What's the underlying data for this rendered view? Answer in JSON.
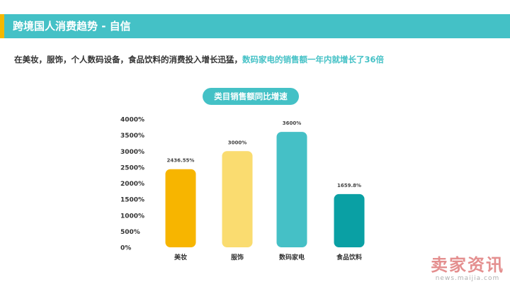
{
  "header": {
    "title": "跨境国人消费趋势 - 自信"
  },
  "subtitle": {
    "plain": "在美妆，服饰，个人数码设备，食品饮料的消费投入增长迅猛，",
    "highlight": "数码家电的销售额一年内就增长了36倍"
  },
  "colors": {
    "accent": "#44c1c6",
    "tab": "#f5b800",
    "highlight": "#44c1c6"
  },
  "watermark": {
    "main": "卖家资讯",
    "url": "news.maijia.com"
  },
  "chart_data": {
    "type": "bar",
    "title": "类目销售额同比增速",
    "categories": [
      "美妆",
      "服饰",
      "数码家电",
      "食品饮料"
    ],
    "values": [
      2436.55,
      3000,
      3600,
      1659.8
    ],
    "value_labels": [
      "2436.55%",
      "3000%",
      "3600%",
      "1659.8%"
    ],
    "bar_colors": [
      "#f7b500",
      "#fadc70",
      "#45c0c6",
      "#0aa0a4"
    ],
    "yticks": [
      "0%",
      "500%",
      "1000%",
      "1500%",
      "2000%",
      "2500%",
      "3000%",
      "3500%",
      "4000%"
    ],
    "ylim": [
      0,
      4000
    ],
    "grid": false,
    "legend": "none",
    "xlabel": "",
    "ylabel": ""
  }
}
